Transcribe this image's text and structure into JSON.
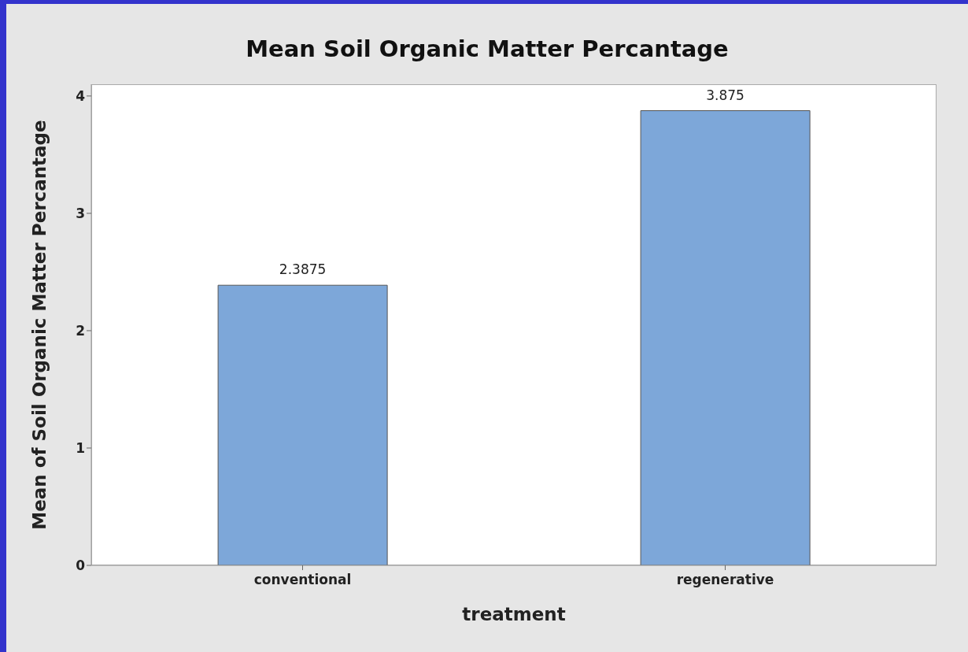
{
  "chart_data": {
    "type": "bar",
    "title": "Mean Soil Organic Matter Percantage",
    "xlabel": "treatment",
    "ylabel": "Mean of Soil Organic Matter Percantage",
    "categories": [
      "conventional",
      "regenerative"
    ],
    "values": [
      2.3875,
      3.875
    ],
    "color": "#7da7d9",
    "ylim": [
      0,
      4.1
    ],
    "yticks": [
      0,
      1,
      2,
      3,
      4
    ],
    "data_labels": true,
    "grid": false,
    "legend": false
  }
}
